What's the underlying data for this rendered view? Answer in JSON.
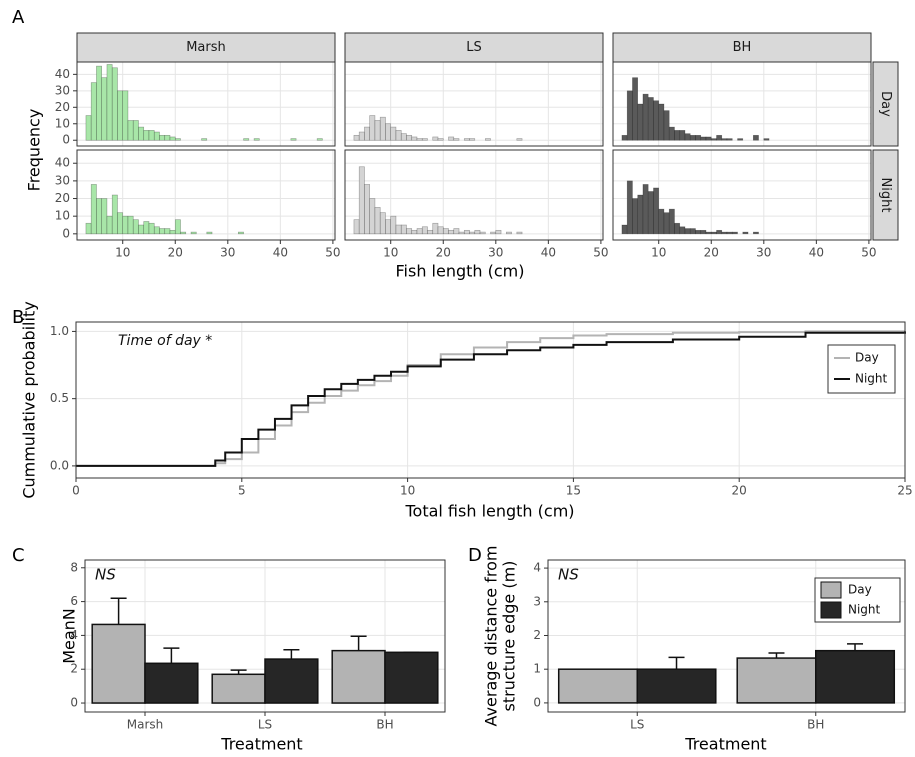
{
  "chart_data": [
    {
      "type": "histogram",
      "panel_label": "A",
      "xlabel": "Fish length (cm)",
      "ylabel": "Frequency",
      "columns": [
        "Marsh",
        "LS",
        "BH"
      ],
      "colors": [
        "#a8e6a8",
        "#d4d4d4",
        "#5a5a5a"
      ],
      "bins": [
        3,
        4,
        5,
        6,
        7,
        8,
        9,
        10,
        11,
        12,
        13,
        14,
        15,
        16,
        17,
        18,
        19,
        20,
        21,
        22,
        23,
        24,
        25,
        26,
        27,
        28,
        29,
        30,
        31,
        32,
        33,
        34,
        35,
        36,
        37,
        38,
        39,
        40,
        41,
        42,
        43,
        44,
        45,
        46,
        47,
        48,
        49
      ],
      "xlim": [
        1.3,
        50.4
      ],
      "xticks": [
        10,
        20,
        30,
        40,
        50
      ],
      "ylim": [
        -3.5,
        47.5
      ],
      "yticks": [
        0,
        10,
        20,
        30,
        40
      ],
      "rows": [
        {
          "name": "Day",
          "counts": [
            [
              15,
              35,
              45,
              38,
              46,
              44,
              30,
              30,
              12,
              12,
              8,
              6,
              6,
              5,
              3,
              3,
              2,
              1,
              0,
              0,
              0,
              0,
              1,
              0,
              0,
              0,
              0,
              0,
              0,
              0,
              1,
              0,
              1,
              0,
              0,
              0,
              0,
              0,
              0,
              1,
              0,
              0,
              0,
              0,
              1,
              0
            ],
            [
              3,
              5,
              8,
              15,
              12,
              14,
              10,
              8,
              6,
              4,
              3,
              2,
              1,
              1,
              0,
              2,
              1,
              0,
              2,
              1,
              0,
              1,
              1,
              0,
              0,
              1,
              0,
              0,
              0,
              0,
              0,
              1,
              0,
              0,
              0,
              0,
              0,
              0,
              0,
              0,
              0,
              0,
              0,
              0,
              0,
              0
            ],
            [
              3,
              30,
              38,
              22,
              28,
              26,
              24,
              22,
              18,
              8,
              6,
              6,
              4,
              3,
              3,
              2,
              2,
              1,
              3,
              1,
              1,
              0,
              1,
              0,
              0,
              3,
              0,
              1,
              0,
              0,
              0,
              0,
              0,
              0,
              0,
              0,
              0,
              0,
              0,
              0,
              0,
              0,
              0,
              0,
              0,
              0
            ]
          ]
        },
        {
          "name": "Night",
          "counts": [
            [
              6,
              28,
              20,
              20,
              10,
              22,
              12,
              10,
              10,
              8,
              5,
              7,
              6,
              4,
              3,
              3,
              2,
              8,
              1,
              0,
              1,
              0,
              0,
              1,
              0,
              0,
              0,
              0,
              0,
              1,
              0,
              0,
              0,
              0,
              0,
              0,
              0,
              0,
              0,
              0,
              0,
              0,
              0,
              0,
              0,
              0
            ],
            [
              8,
              38,
              28,
              20,
              15,
              12,
              8,
              10,
              5,
              5,
              3,
              2,
              3,
              4,
              2,
              6,
              4,
              3,
              2,
              3,
              1,
              2,
              1,
              2,
              1,
              0,
              1,
              2,
              0,
              1,
              0,
              1,
              0,
              0,
              0,
              0,
              0,
              0,
              0,
              0,
              0,
              0,
              0,
              0,
              0,
              0
            ],
            [
              5,
              30,
              20,
              22,
              28,
              24,
              26,
              14,
              12,
              14,
              6,
              4,
              3,
              3,
              2,
              2,
              1,
              1,
              2,
              1,
              1,
              1,
              0,
              1,
              0,
              1,
              0,
              0,
              0,
              0,
              0,
              0,
              0,
              0,
              0,
              0,
              0,
              0,
              0,
              0,
              0,
              0,
              0,
              0,
              0,
              0
            ]
          ]
        }
      ]
    },
    {
      "type": "step",
      "panel_label": "B",
      "xlabel": "Total fish length (cm)",
      "ylabel": "Cummulative probability",
      "annotation": "Time of day *",
      "legend": "right",
      "x": [
        0,
        4,
        4.2,
        4.5,
        5,
        5.5,
        6,
        6.5,
        7,
        7.5,
        8,
        8.5,
        9,
        9.5,
        10,
        11,
        12,
        13,
        14,
        15,
        16,
        18,
        20,
        22,
        25
      ],
      "series": [
        {
          "name": "Day",
          "color": "#b3b3b3",
          "values": [
            0,
            0,
            0.02,
            0.05,
            0.1,
            0.2,
            0.3,
            0.4,
            0.47,
            0.52,
            0.56,
            0.6,
            0.63,
            0.67,
            0.75,
            0.83,
            0.88,
            0.92,
            0.95,
            0.97,
            0.98,
            0.99,
            0.995,
            1,
            1
          ]
        },
        {
          "name": "Night",
          "color": "#111111",
          "values": [
            0,
            0,
            0.04,
            0.1,
            0.2,
            0.27,
            0.35,
            0.45,
            0.52,
            0.57,
            0.61,
            0.64,
            0.67,
            0.7,
            0.74,
            0.79,
            0.83,
            0.86,
            0.88,
            0.9,
            0.92,
            0.94,
            0.96,
            0.99,
            1
          ]
        }
      ],
      "xlim": [
        0,
        25
      ],
      "xticks": [
        0,
        5,
        10,
        15,
        20,
        25
      ],
      "ylim": [
        -0.09,
        1.07
      ],
      "yticks": [
        {
          "value": 0,
          "label": "0.0"
        },
        0.5,
        {
          "value": 1,
          "label": "1.0"
        }
      ]
    },
    {
      "type": "bar",
      "panel_label": "C",
      "xlabel": "Treatment",
      "ylabel": "MeanN",
      "annotation": "NS",
      "legend": false,
      "categories": [
        "Marsh",
        "LS",
        "BH"
      ],
      "series": [
        {
          "name": "Day",
          "color": "#b3b3b3",
          "values": [
            4.65,
            1.7,
            3.1
          ],
          "errors": [
            1.55,
            0.25,
            0.85
          ]
        },
        {
          "name": "Night",
          "color": "#262626",
          "values": [
            2.35,
            2.6,
            3.0
          ],
          "errors": [
            0.9,
            0.55,
            0
          ]
        }
      ],
      "ylim": [
        -0.53,
        8.46
      ],
      "yticks": [
        0,
        2,
        4,
        6,
        8
      ]
    },
    {
      "type": "bar",
      "panel_label": "D",
      "xlabel": "Treatment",
      "ylabel": [
        "Average distance from",
        "structure edge (m)"
      ],
      "annotation": "NS",
      "legend": "top-right",
      "categories": [
        "LS",
        "BH"
      ],
      "series": [
        {
          "name": "Day",
          "color": "#b3b3b3",
          "values": [
            1.0,
            1.33
          ],
          "errors": [
            0,
            0.15
          ]
        },
        {
          "name": "Night",
          "color": "#262626",
          "values": [
            1.0,
            1.55
          ],
          "errors": [
            0.35,
            0.2
          ]
        }
      ],
      "ylim": [
        -0.27,
        4.24
      ],
      "yticks": [
        0,
        1,
        2,
        3,
        4
      ]
    }
  ]
}
